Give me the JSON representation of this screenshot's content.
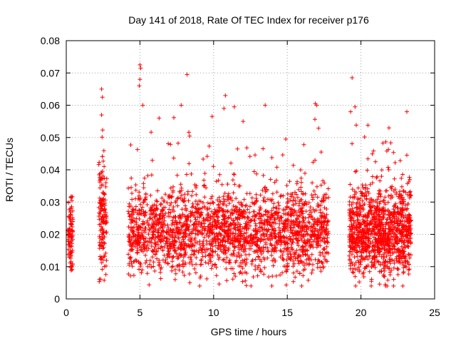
{
  "chart_data": {
    "type": "scatter",
    "title": "Day 141 of 2018, Rate Of TEC Index for receiver p176",
    "xlabel": "GPS time / hours",
    "ylabel": "ROTI / TECUs",
    "xlim": [
      0,
      25
    ],
    "ylim": [
      0,
      0.08
    ],
    "xticks": [
      0,
      5,
      10,
      15,
      20,
      25
    ],
    "xtick_labels": [
      "0",
      "5",
      "10",
      "15",
      "20",
      "25"
    ],
    "yticks": [
      0,
      0.01,
      0.02,
      0.03,
      0.04,
      0.05,
      0.06,
      0.07,
      0.08
    ],
    "ytick_labels": [
      "0",
      "0.01",
      "0.02",
      "0.03",
      "0.04",
      "0.05",
      "0.06",
      "0.07",
      "0.08"
    ],
    "grid": true,
    "marker": "+",
    "series_color": "#ff0000",
    "segments": [
      {
        "x_start": 0.1,
        "x_end": 0.45,
        "y_center": 0.019,
        "y_spread": 0.011
      },
      {
        "x_start": 2.2,
        "x_end": 2.75,
        "y_center": 0.025,
        "y_spread": 0.018
      },
      {
        "x_start": 4.2,
        "x_end": 17.8,
        "y_center": 0.021,
        "y_spread": 0.014
      },
      {
        "x_start": 19.2,
        "x_end": 23.4,
        "y_center": 0.021,
        "y_spread": 0.015
      }
    ],
    "outliers": [
      {
        "x": 2.4,
        "y": 0.065
      },
      {
        "x": 2.45,
        "y": 0.0625
      },
      {
        "x": 2.4,
        "y": 0.057
      },
      {
        "x": 5.0,
        "y": 0.0725
      },
      {
        "x": 5.05,
        "y": 0.0715
      },
      {
        "x": 5.0,
        "y": 0.068
      },
      {
        "x": 4.95,
        "y": 0.066
      },
      {
        "x": 5.2,
        "y": 0.06
      },
      {
        "x": 8.2,
        "y": 0.0695
      },
      {
        "x": 10.8,
        "y": 0.063
      },
      {
        "x": 10.7,
        "y": 0.059
      },
      {
        "x": 12.0,
        "y": 0.055
      },
      {
        "x": 13.5,
        "y": 0.06
      },
      {
        "x": 16.9,
        "y": 0.0605
      },
      {
        "x": 17.0,
        "y": 0.06
      },
      {
        "x": 19.4,
        "y": 0.0685
      },
      {
        "x": 19.3,
        "y": 0.058
      },
      {
        "x": 19.6,
        "y": 0.0595
      },
      {
        "x": 21.9,
        "y": 0.053
      },
      {
        "x": 9.9,
        "y": 0.0565
      },
      {
        "x": 11.4,
        "y": 0.0595
      },
      {
        "x": 6.3,
        "y": 0.056
      },
      {
        "x": 7.8,
        "y": 0.06
      },
      {
        "x": 14.9,
        "y": 0.0495
      }
    ]
  }
}
